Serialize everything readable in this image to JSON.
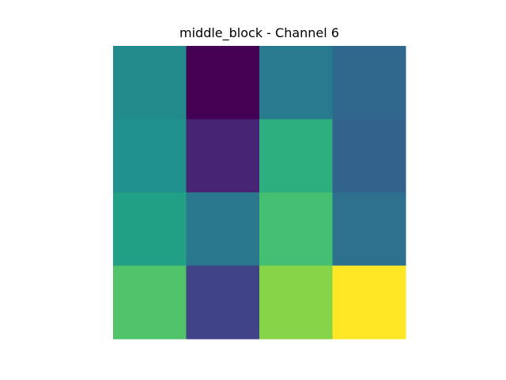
{
  "chart_data": {
    "type": "heatmap",
    "title": "middle_block - Channel 6",
    "xlabel": "",
    "ylabel": "",
    "colormap": "viridis",
    "axes_visible": false,
    "grid": false,
    "rows": 4,
    "cols": 4,
    "values": [
      [
        0.48,
        0.0,
        0.41,
        0.34
      ],
      [
        0.5,
        0.1,
        0.63,
        0.32
      ],
      [
        0.57,
        0.4,
        0.7,
        0.37
      ],
      [
        0.72,
        0.2,
        0.82,
        1.0
      ]
    ],
    "vmin": 0.0,
    "vmax": 1.0
  }
}
